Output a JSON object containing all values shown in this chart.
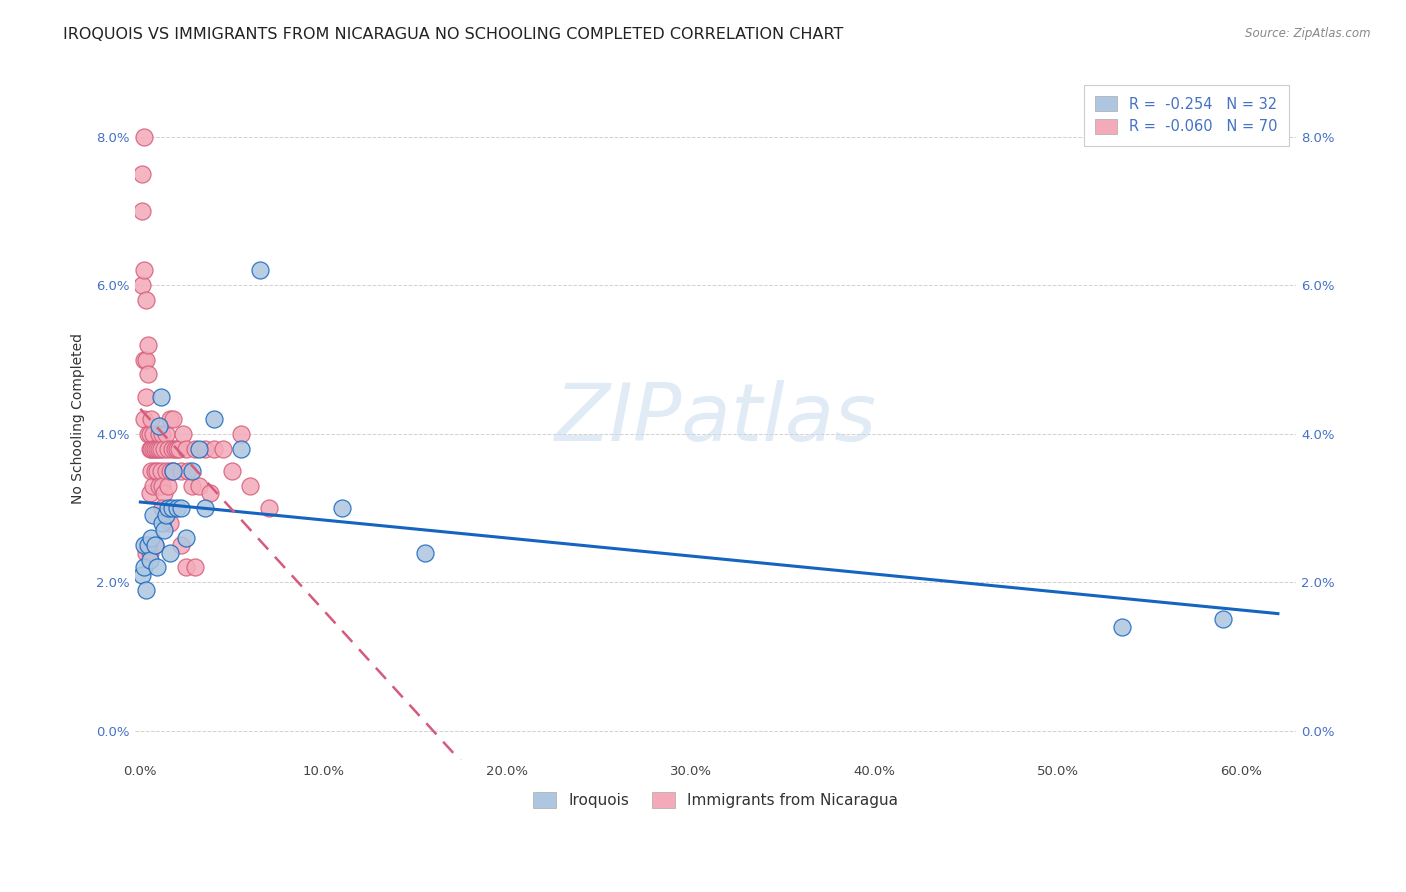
{
  "title": "IROQUOIS VS IMMIGRANTS FROM NICARAGUA NO SCHOOLING COMPLETED CORRELATION CHART",
  "source": "Source: ZipAtlas.com",
  "ylabel": "No Schooling Completed",
  "legend1_label": "Iroquois",
  "legend2_label": "Immigrants from Nicaragua",
  "r1": -0.254,
  "n1": 32,
  "r2": -0.06,
  "n2": 70,
  "color1": "#aec6df",
  "color2": "#f4aab9",
  "line_color1": "#1565c0",
  "line_color2": "#d45b7a",
  "xlim": [
    -0.003,
    0.63
  ],
  "ylim": [
    -0.004,
    0.088
  ],
  "xticks": [
    0.0,
    0.1,
    0.2,
    0.3,
    0.4,
    0.5,
    0.6
  ],
  "yticks": [
    0.0,
    0.02,
    0.04,
    0.06,
    0.08
  ],
  "background_color": "#ffffff",
  "iroquois_x": [
    0.001,
    0.002,
    0.002,
    0.003,
    0.004,
    0.005,
    0.006,
    0.007,
    0.008,
    0.009,
    0.01,
    0.011,
    0.012,
    0.013,
    0.014,
    0.015,
    0.016,
    0.017,
    0.018,
    0.02,
    0.022,
    0.025,
    0.028,
    0.032,
    0.035,
    0.04,
    0.055,
    0.065,
    0.11,
    0.155,
    0.535,
    0.59
  ],
  "iroquois_y": [
    0.021,
    0.022,
    0.025,
    0.019,
    0.025,
    0.023,
    0.026,
    0.029,
    0.025,
    0.022,
    0.041,
    0.045,
    0.028,
    0.027,
    0.029,
    0.03,
    0.024,
    0.03,
    0.035,
    0.03,
    0.03,
    0.026,
    0.035,
    0.038,
    0.03,
    0.042,
    0.038,
    0.062,
    0.03,
    0.024,
    0.014,
    0.015
  ],
  "nicaragua_x": [
    0.001,
    0.001,
    0.001,
    0.002,
    0.002,
    0.002,
    0.002,
    0.003,
    0.003,
    0.003,
    0.004,
    0.004,
    0.004,
    0.005,
    0.005,
    0.005,
    0.006,
    0.006,
    0.006,
    0.007,
    0.007,
    0.007,
    0.008,
    0.008,
    0.009,
    0.009,
    0.01,
    0.01,
    0.01,
    0.011,
    0.011,
    0.012,
    0.012,
    0.013,
    0.013,
    0.014,
    0.014,
    0.015,
    0.015,
    0.016,
    0.016,
    0.017,
    0.018,
    0.018,
    0.019,
    0.02,
    0.021,
    0.022,
    0.023,
    0.025,
    0.026,
    0.028,
    0.03,
    0.032,
    0.035,
    0.038,
    0.04,
    0.045,
    0.05,
    0.055,
    0.06,
    0.07,
    0.003,
    0.005,
    0.008,
    0.012,
    0.016,
    0.022,
    0.025,
    0.03
  ],
  "nicaragua_y": [
    0.075,
    0.07,
    0.06,
    0.08,
    0.062,
    0.05,
    0.042,
    0.058,
    0.05,
    0.045,
    0.052,
    0.048,
    0.04,
    0.04,
    0.038,
    0.032,
    0.042,
    0.038,
    0.035,
    0.04,
    0.038,
    0.033,
    0.038,
    0.035,
    0.038,
    0.035,
    0.04,
    0.038,
    0.033,
    0.038,
    0.035,
    0.04,
    0.033,
    0.038,
    0.032,
    0.04,
    0.035,
    0.038,
    0.033,
    0.042,
    0.035,
    0.038,
    0.042,
    0.035,
    0.038,
    0.038,
    0.038,
    0.035,
    0.04,
    0.038,
    0.035,
    0.033,
    0.038,
    0.033,
    0.038,
    0.032,
    0.038,
    0.038,
    0.035,
    0.04,
    0.033,
    0.03,
    0.024,
    0.024,
    0.025,
    0.03,
    0.028,
    0.025,
    0.022,
    0.022
  ],
  "watermark_text": "ZIPatlas",
  "title_fontsize": 11.5,
  "axis_label_fontsize": 10,
  "tick_fontsize": 9.5,
  "legend_fontsize": 10.5
}
